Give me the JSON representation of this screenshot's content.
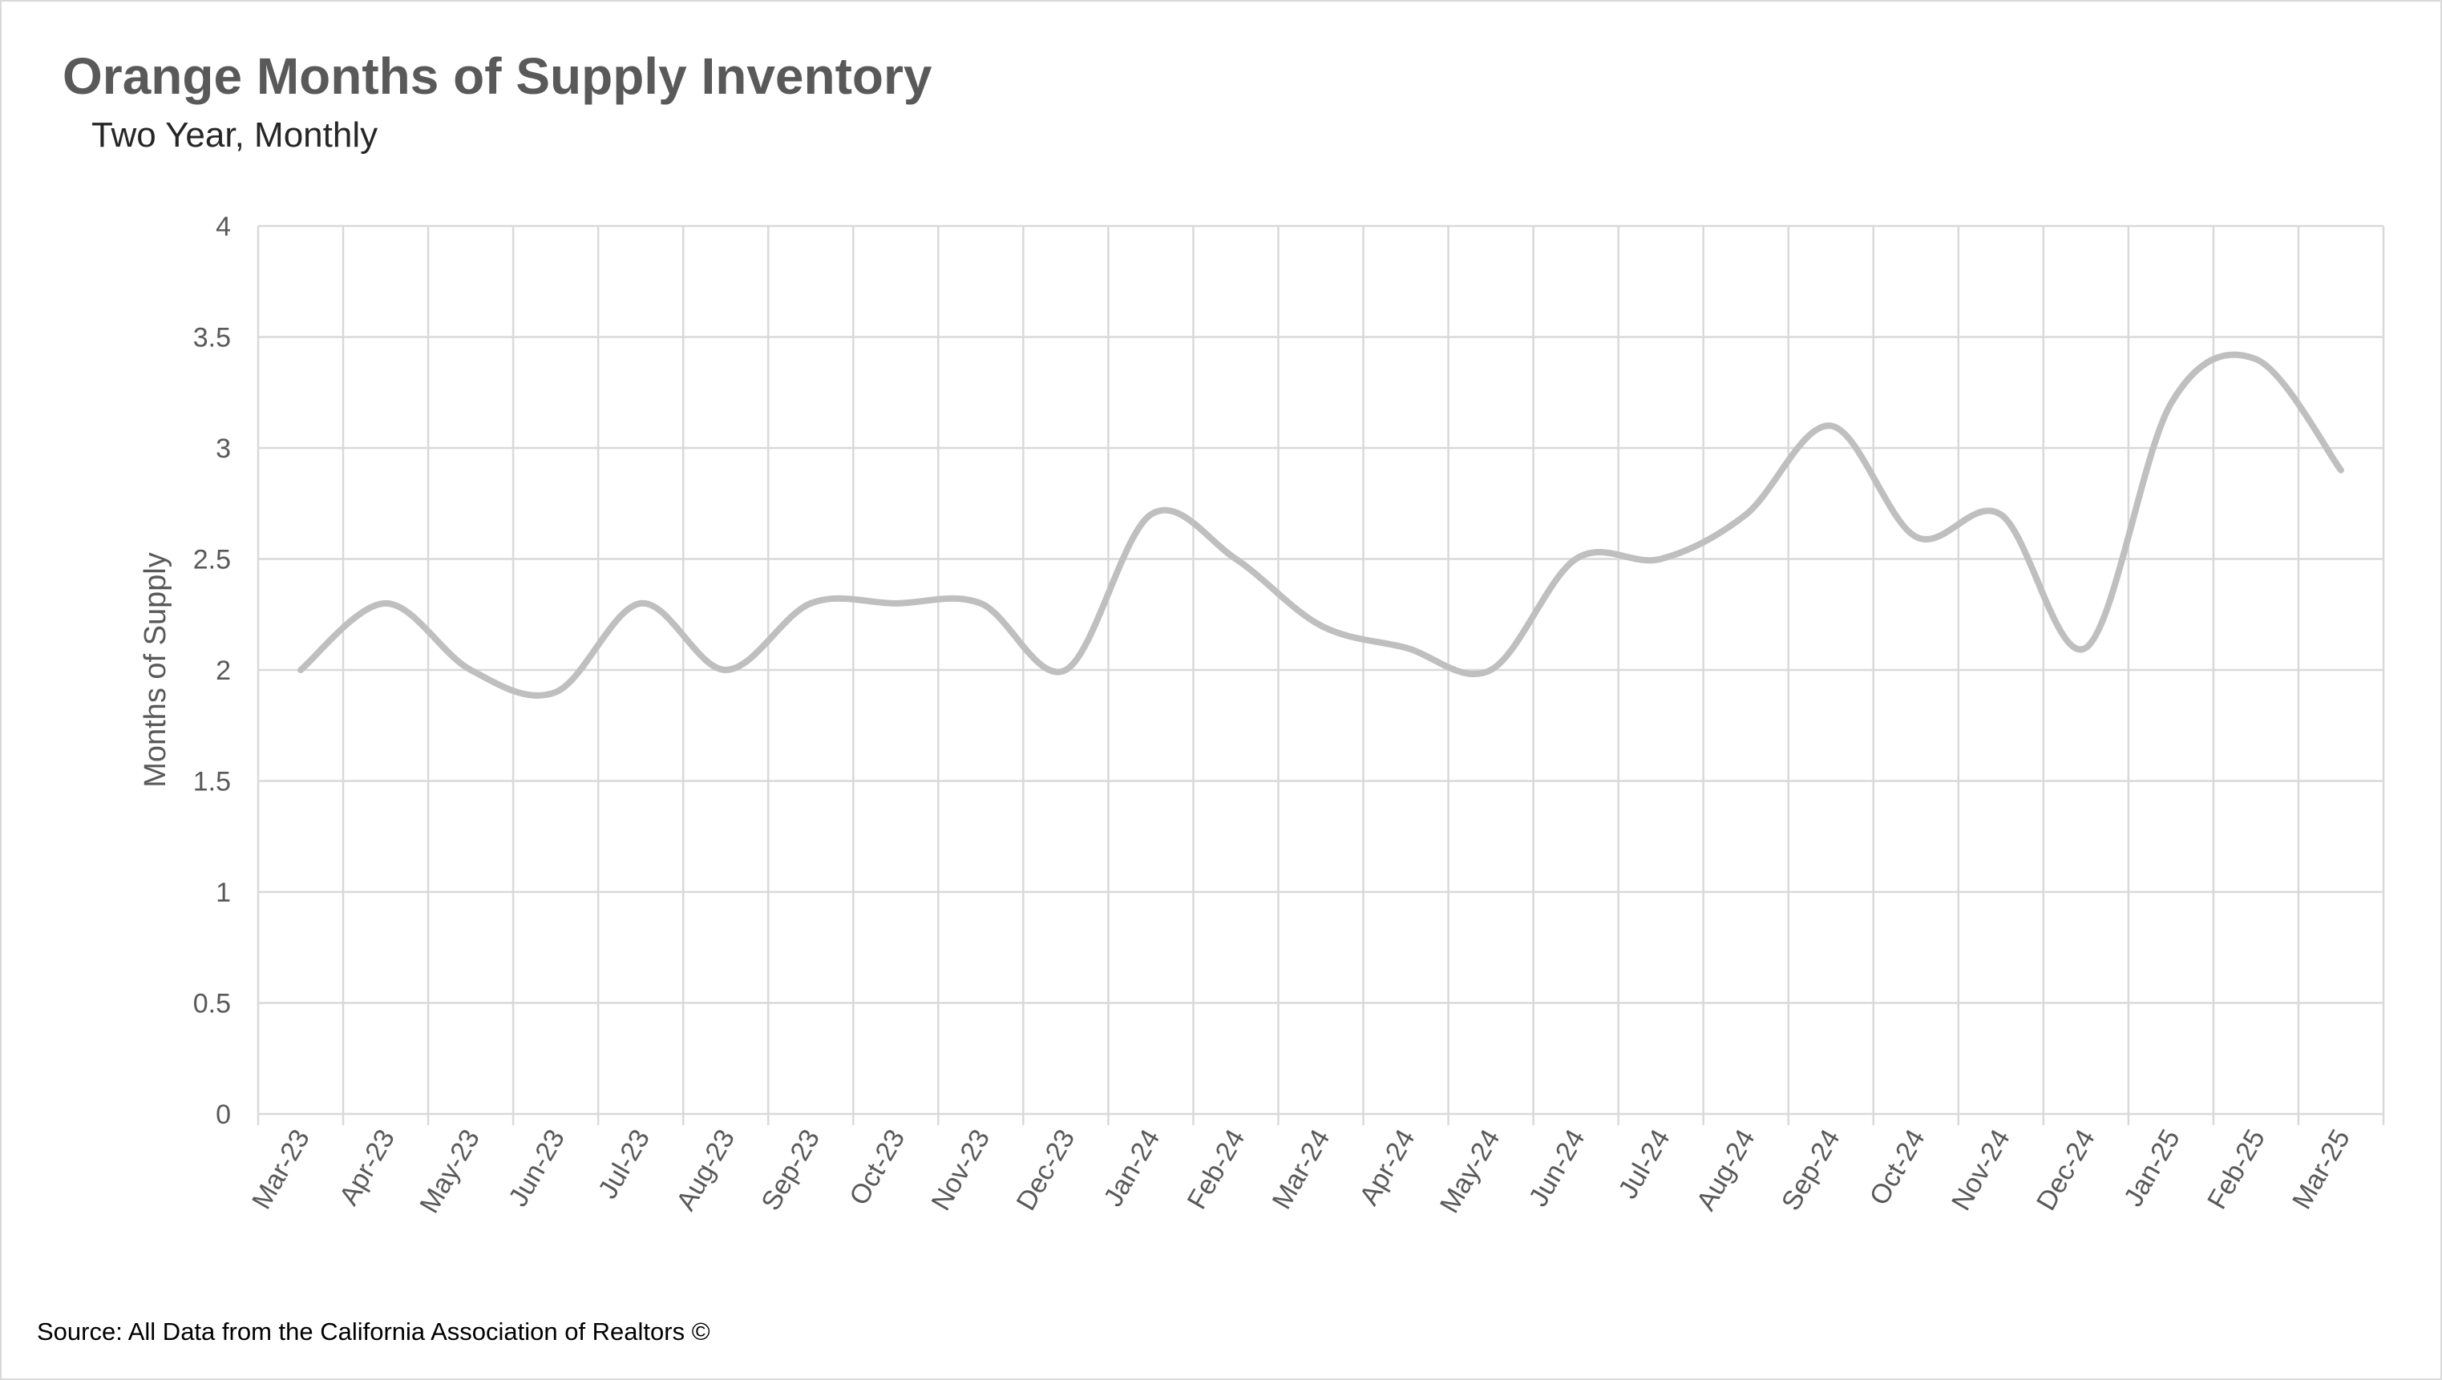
{
  "header": {
    "title": "Orange Months of Supply Inventory",
    "subtitle": "Two Year, Monthly"
  },
  "footer": {
    "source": "Source: All Data from the California Association of Realtors ©"
  },
  "chart_data": {
    "type": "line",
    "title": "Orange Months of Supply Inventory",
    "subtitle": "Two Year, Monthly",
    "xlabel": "",
    "ylabel": "Months of Supply",
    "ylim": [
      0,
      4
    ],
    "yticks": [
      "0",
      "0.5",
      "1",
      "1.5",
      "2",
      "2.5",
      "3",
      "3.5",
      "4"
    ],
    "grid": true,
    "smooth": true,
    "categories": [
      "Mar-23",
      "Apr-23",
      "May-23",
      "Jun-23",
      "Jul-23",
      "Aug-23",
      "Sep-23",
      "Oct-23",
      "Nov-23",
      "Dec-23",
      "Jan-24",
      "Feb-24",
      "Mar-24",
      "Apr-24",
      "May-24",
      "Jun-24",
      "Jul-24",
      "Aug-24",
      "Sep-24",
      "Oct-24",
      "Nov-24",
      "Dec-24",
      "Jan-25",
      "Feb-25",
      "Mar-25"
    ],
    "series": [
      {
        "color": "#bfbfbf",
        "values": [
          2.0,
          2.3,
          2.0,
          1.9,
          2.3,
          2.0,
          2.3,
          2.3,
          2.3,
          2.0,
          2.7,
          2.5,
          2.2,
          2.1,
          2.0,
          2.5,
          2.5,
          2.7,
          3.1,
          2.6,
          2.7,
          2.1,
          3.2,
          3.4,
          2.9
        ]
      }
    ]
  }
}
